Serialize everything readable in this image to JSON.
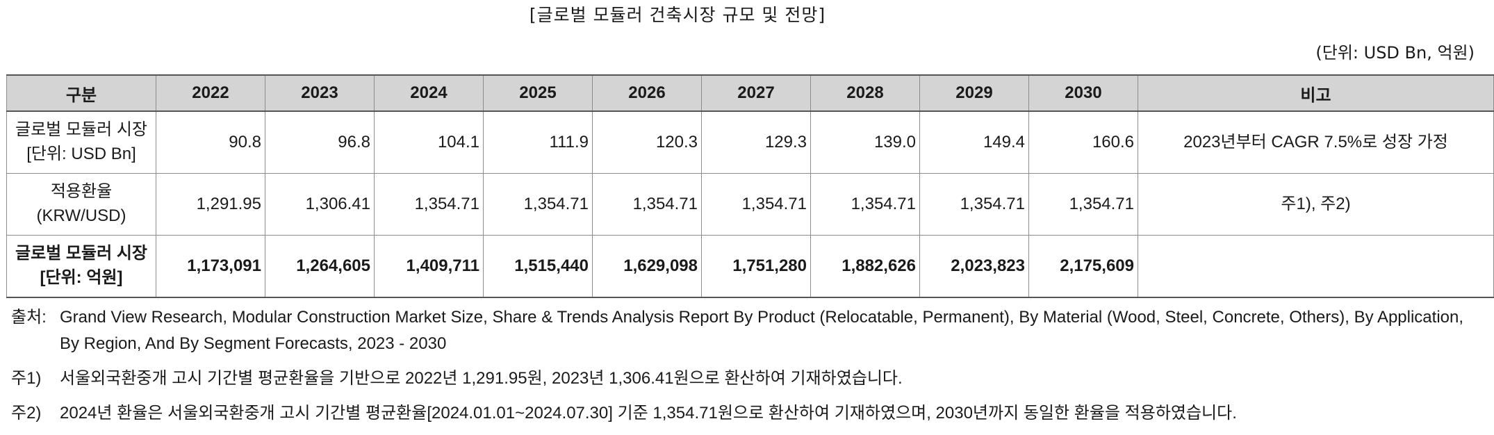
{
  "title": "[글로벌 모듈러 건축시장 규모 및 전망]",
  "unit": "(단위: USD Bn, 억원)",
  "table": {
    "headers": [
      "구분",
      "2022",
      "2023",
      "2024",
      "2025",
      "2026",
      "2027",
      "2028",
      "2029",
      "2030",
      "비고"
    ],
    "rows": [
      {
        "label_line1": "글로벌 모듈러 시장",
        "label_line2": "[단위: USD Bn]",
        "values": [
          "90.8",
          "96.8",
          "104.1",
          "111.9",
          "120.3",
          "129.3",
          "139.0",
          "149.4",
          "160.6"
        ],
        "note": "2023년부터 CAGR 7.5%로 성장 가정"
      },
      {
        "label_line1": "적용환율",
        "label_line2": "(KRW/USD)",
        "values": [
          "1,291.95",
          "1,306.41",
          "1,354.71",
          "1,354.71",
          "1,354.71",
          "1,354.71",
          "1,354.71",
          "1,354.71",
          "1,354.71"
        ],
        "note": "주1), 주2)"
      },
      {
        "label_line1": "글로벌 모듈러 시장",
        "label_line2": "[단위: 억원]",
        "values": [
          "1,173,091",
          "1,264,605",
          "1,409,711",
          "1,515,440",
          "1,629,098",
          "1,751,280",
          "1,882,626",
          "2,023,823",
          "2,175,609"
        ],
        "note": ""
      }
    ]
  },
  "footnotes": [
    {
      "key": "출처:",
      "text": "Grand View Research, Modular Construction Market Size, Share & Trends Analysis Report By Product (Relocatable, Permanent), By Material (Wood, Steel, Concrete, Others), By Application, By Region, And By Segment Forecasts, 2023 - 2030"
    },
    {
      "key": "주1)",
      "text": "서울외국환중개 고시 기간별 평균환율을 기반으로 2022년 1,291.95원, 2023년 1,306.41원으로 환산하여 기재하였습니다."
    },
    {
      "key": "주2)",
      "text": "2024년 환율은 서울외국환중개 고시 기간별 평균환율[2024.01.01~2024.07.30] 기준 1,354.71원으로 환산하여 기재하였으며, 2030년까지 동일한 환율을 적용하였습니다."
    }
  ]
}
